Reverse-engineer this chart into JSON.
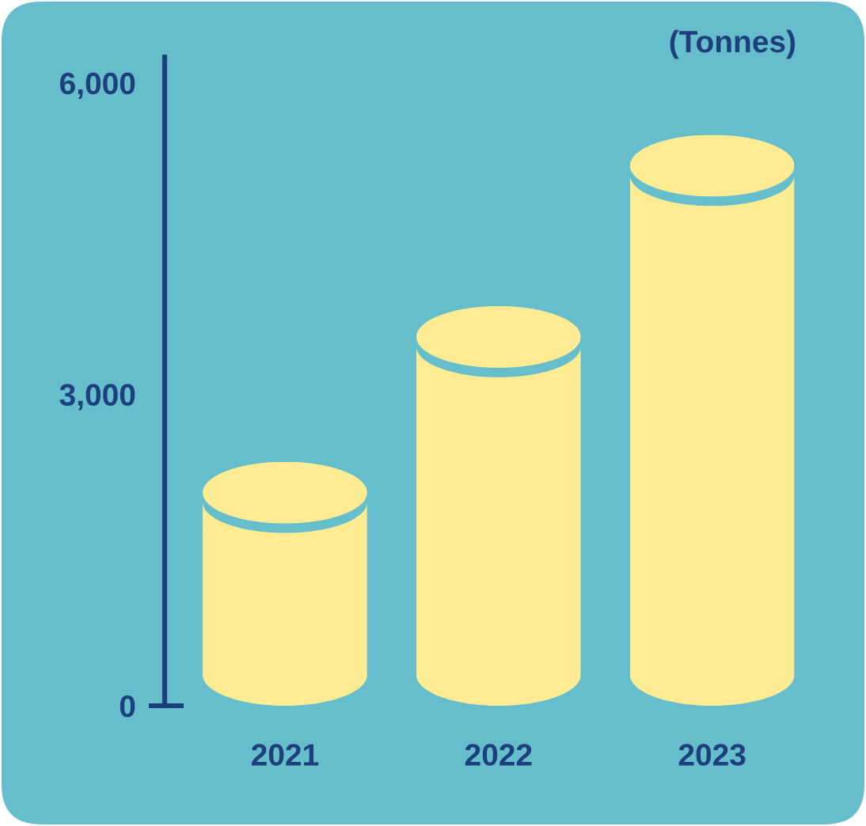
{
  "chart_data": {
    "type": "bar",
    "ylabel": "(Tonnes)",
    "categories": [
      "2021",
      "2022",
      "2023"
    ],
    "values": [
      2350,
      3850,
      5500
    ],
    "color": "#feec94",
    "ylim": [
      0,
      6250
    ],
    "yticks": [
      0,
      {
        "value": 3000,
        "label": "3,000"
      },
      {
        "value": 6000,
        "label": "6,000"
      }
    ]
  }
}
